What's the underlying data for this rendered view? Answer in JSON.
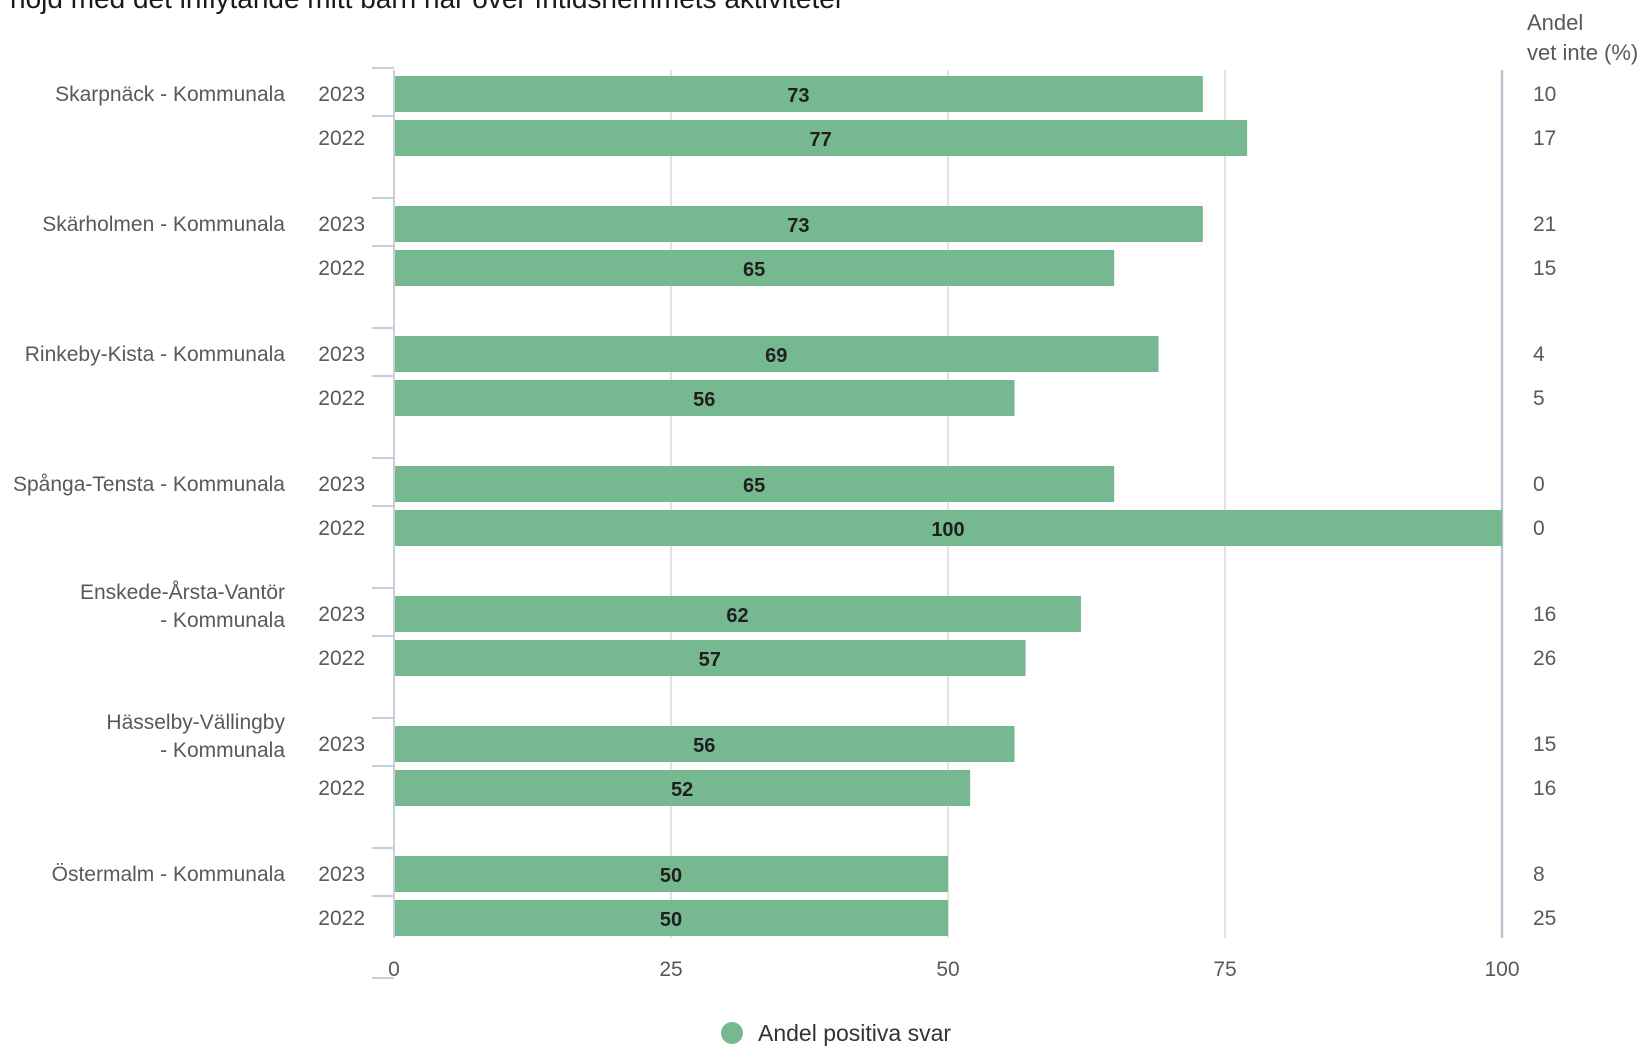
{
  "chart_data": {
    "type": "bar",
    "orientation": "horizontal",
    "title": "nöjd med det inflytande mitt barn har över fritidshemmets aktiviteter",
    "side_header": [
      "Andel",
      "vet inte (%)"
    ],
    "xlim": [
      0,
      100
    ],
    "x_ticks": [
      "0",
      "25",
      "50",
      "75",
      "100"
    ],
    "grid": true,
    "bar_color": "#76b88f",
    "legend": {
      "position": "bottom",
      "label": "Andel positiva svar",
      "color": "#76b88f"
    },
    "groups": [
      {
        "name": [
          "Skarpnäck - Kommunala"
        ],
        "rows": [
          {
            "year": "2023",
            "value": 73,
            "dont_know": "10"
          },
          {
            "year": "2022",
            "value": 77,
            "dont_know": "17"
          }
        ]
      },
      {
        "name": [
          "Skärholmen - Kommunala"
        ],
        "rows": [
          {
            "year": "2023",
            "value": 73,
            "dont_know": "21"
          },
          {
            "year": "2022",
            "value": 65,
            "dont_know": "15"
          }
        ]
      },
      {
        "name": [
          "Rinkeby-Kista - Kommunala"
        ],
        "rows": [
          {
            "year": "2023",
            "value": 69,
            "dont_know": "4"
          },
          {
            "year": "2022",
            "value": 56,
            "dont_know": "5"
          }
        ]
      },
      {
        "name": [
          "Spånga-Tensta - Kommunala"
        ],
        "rows": [
          {
            "year": "2023",
            "value": 65,
            "dont_know": "0"
          },
          {
            "year": "2022",
            "value": 100,
            "dont_know": "0"
          }
        ]
      },
      {
        "name": [
          "Enskede-Årsta-Vantör",
          "- Kommunala"
        ],
        "rows": [
          {
            "year": "2023",
            "value": 62,
            "dont_know": "16"
          },
          {
            "year": "2022",
            "value": 57,
            "dont_know": "26"
          }
        ]
      },
      {
        "name": [
          "Hässelby-Vällingby",
          "- Kommunala"
        ],
        "rows": [
          {
            "year": "2023",
            "value": 56,
            "dont_know": "15"
          },
          {
            "year": "2022",
            "value": 52,
            "dont_know": "16"
          }
        ]
      },
      {
        "name": [
          "Östermalm - Kommunala"
        ],
        "rows": [
          {
            "year": "2023",
            "value": 50,
            "dont_know": "8"
          },
          {
            "year": "2022",
            "value": 50,
            "dont_know": "25"
          }
        ]
      }
    ]
  }
}
